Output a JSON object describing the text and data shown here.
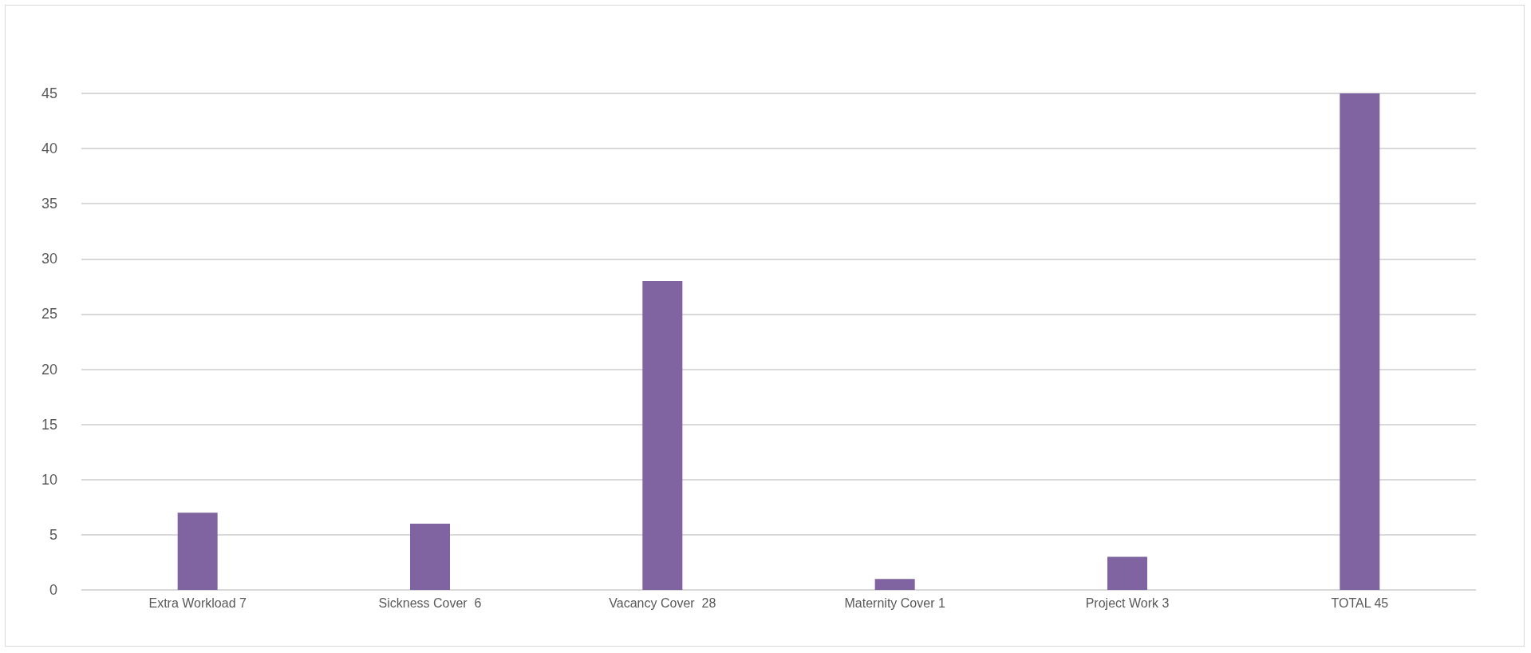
{
  "chart_data": {
    "type": "bar",
    "categories": [
      "Extra Workload 7",
      "Sickness Cover  6",
      "Vacancy Cover  28",
      "Maternity Cover 1",
      "Project Work 3",
      "TOTAL 45"
    ],
    "values": [
      7,
      6,
      28,
      1,
      3,
      45
    ],
    "color": "#8064a2",
    "ylim": [
      0,
      45
    ],
    "yticks": [
      0,
      5,
      10,
      15,
      20,
      25,
      30,
      35,
      40,
      45
    ],
    "grid": "y"
  }
}
